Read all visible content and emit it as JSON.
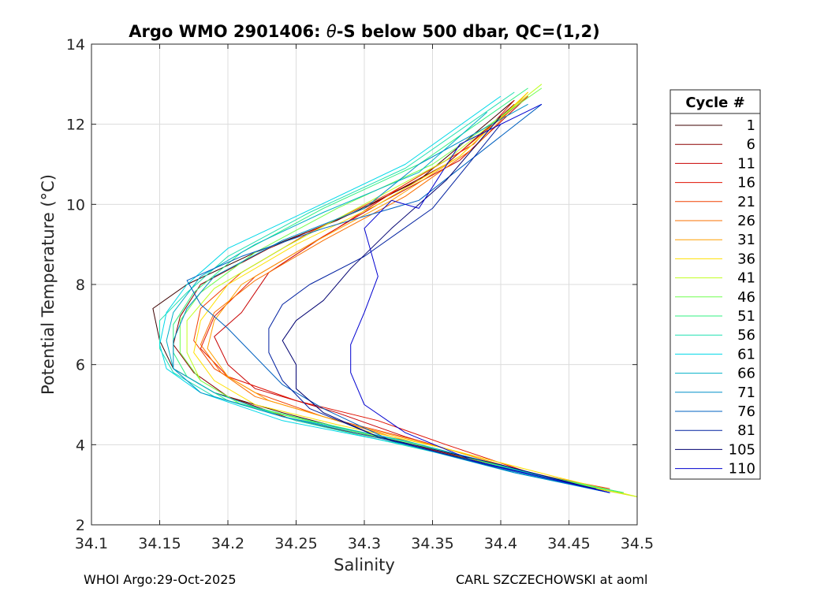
{
  "chart_data": {
    "type": "line",
    "title_prefix": "Argo WMO 2901406: ",
    "title_theta": "θ",
    "title_suffix": "-S below 500 dbar,  QC=(1,2)",
    "xlabel": "Salinity",
    "ylabel": "Potential Temperature (°C)",
    "xlim": [
      34.1,
      34.5
    ],
    "ylim": [
      2,
      14
    ],
    "x_ticks": [
      "34.1",
      "34.15",
      "34.2",
      "34.25",
      "34.3",
      "34.35",
      "34.4",
      "34.45",
      "34.5"
    ],
    "y_ticks": [
      "2",
      "4",
      "6",
      "8",
      "10",
      "12",
      "14"
    ],
    "grid": true,
    "legend": {
      "title": "Cycle #",
      "position": "right",
      "entries": [
        {
          "label": "1",
          "color": "#3d0000"
        },
        {
          "label": "6",
          "color": "#8c0000"
        },
        {
          "label": "11",
          "color": "#c80000"
        },
        {
          "label": "16",
          "color": "#e01000"
        },
        {
          "label": "21",
          "color": "#f04000"
        },
        {
          "label": "26",
          "color": "#fa7000"
        },
        {
          "label": "31",
          "color": "#ffa000"
        },
        {
          "label": "36",
          "color": "#ffe000"
        },
        {
          "label": "41",
          "color": "#c0ff20"
        },
        {
          "label": "46",
          "color": "#70ff50"
        },
        {
          "label": "51",
          "color": "#30f080"
        },
        {
          "label": "56",
          "color": "#20e0b0"
        },
        {
          "label": "61",
          "color": "#00d8e8"
        },
        {
          "label": "66",
          "color": "#00b0c8"
        },
        {
          "label": "71",
          "color": "#0090c8"
        },
        {
          "label": "76",
          "color": "#0060c0"
        },
        {
          "label": "81",
          "color": "#0020a0"
        },
        {
          "label": "105",
          "color": "#000070"
        },
        {
          "label": "110",
          "color": "#0000d0"
        }
      ]
    },
    "series": [
      {
        "name": "1",
        "color": "#3d0000",
        "points": [
          [
            34.48,
            2.8
          ],
          [
            34.42,
            3.3
          ],
          [
            34.33,
            4.0
          ],
          [
            34.24,
            4.8
          ],
          [
            34.19,
            5.3
          ],
          [
            34.16,
            5.9
          ],
          [
            34.15,
            6.6
          ],
          [
            34.145,
            7.4
          ],
          [
            34.17,
            8.0
          ],
          [
            34.22,
            8.8
          ],
          [
            34.28,
            9.6
          ],
          [
            34.34,
            10.6
          ],
          [
            34.41,
            12.6
          ]
        ]
      },
      {
        "name": "6",
        "color": "#8c0000",
        "points": [
          [
            34.47,
            2.9
          ],
          [
            34.41,
            3.4
          ],
          [
            34.32,
            4.1
          ],
          [
            34.25,
            4.6
          ],
          [
            34.2,
            5.2
          ],
          [
            34.175,
            5.8
          ],
          [
            34.16,
            6.5
          ],
          [
            34.165,
            7.2
          ],
          [
            34.18,
            8.0
          ],
          [
            34.23,
            8.9
          ],
          [
            34.3,
            9.9
          ],
          [
            34.36,
            11.0
          ],
          [
            34.41,
            12.5
          ]
        ]
      },
      {
        "name": "11",
        "color": "#c80000",
        "points": [
          [
            34.46,
            3.0
          ],
          [
            34.41,
            3.4
          ],
          [
            34.33,
            4.2
          ],
          [
            34.28,
            4.8
          ],
          [
            34.22,
            5.4
          ],
          [
            34.2,
            6.0
          ],
          [
            34.19,
            6.7
          ],
          [
            34.21,
            7.3
          ],
          [
            34.23,
            8.3
          ],
          [
            34.27,
            9.2
          ],
          [
            34.31,
            10.0
          ],
          [
            34.37,
            11.1
          ],
          [
            34.42,
            12.7
          ]
        ]
      },
      {
        "name": "16",
        "color": "#e01000",
        "points": [
          [
            34.49,
            2.8
          ],
          [
            34.43,
            3.2
          ],
          [
            34.36,
            4.0
          ],
          [
            34.31,
            4.6
          ],
          [
            34.25,
            5.1
          ],
          [
            34.2,
            5.7
          ],
          [
            34.18,
            6.4
          ],
          [
            34.19,
            7.2
          ],
          [
            34.22,
            8.2
          ],
          [
            34.28,
            9.4
          ],
          [
            34.33,
            10.5
          ],
          [
            34.38,
            11.5
          ],
          [
            34.41,
            12.6
          ]
        ]
      },
      {
        "name": "21",
        "color": "#f04000",
        "points": [
          [
            34.48,
            2.9
          ],
          [
            34.42,
            3.3
          ],
          [
            34.34,
            4.1
          ],
          [
            34.27,
            4.7
          ],
          [
            34.22,
            5.3
          ],
          [
            34.19,
            5.9
          ],
          [
            34.175,
            6.6
          ],
          [
            34.18,
            7.4
          ],
          [
            34.21,
            8.3
          ],
          [
            34.26,
            9.3
          ],
          [
            34.32,
            10.3
          ],
          [
            34.37,
            11.3
          ],
          [
            34.42,
            12.7
          ]
        ]
      },
      {
        "name": "26",
        "color": "#fa7000",
        "points": [
          [
            34.49,
            2.8
          ],
          [
            34.43,
            3.2
          ],
          [
            34.35,
            3.9
          ],
          [
            34.28,
            4.6
          ],
          [
            34.22,
            5.2
          ],
          [
            34.195,
            5.8
          ],
          [
            34.18,
            6.5
          ],
          [
            34.19,
            7.3
          ],
          [
            34.22,
            8.1
          ],
          [
            34.27,
            9.1
          ],
          [
            34.33,
            10.2
          ],
          [
            34.38,
            11.4
          ],
          [
            34.42,
            12.8
          ]
        ]
      },
      {
        "name": "31",
        "color": "#ffa000",
        "points": [
          [
            34.5,
            2.7
          ],
          [
            34.44,
            3.1
          ],
          [
            34.36,
            3.9
          ],
          [
            34.29,
            4.5
          ],
          [
            34.23,
            5.1
          ],
          [
            34.2,
            5.7
          ],
          [
            34.185,
            6.4
          ],
          [
            34.19,
            7.1
          ],
          [
            34.21,
            8.0
          ],
          [
            34.26,
            9.0
          ],
          [
            34.32,
            10.1
          ],
          [
            34.37,
            11.2
          ],
          [
            34.42,
            12.8
          ]
        ]
      },
      {
        "name": "36",
        "color": "#ffe000",
        "points": [
          [
            34.5,
            2.7
          ],
          [
            34.44,
            3.2
          ],
          [
            34.36,
            3.9
          ],
          [
            34.28,
            4.5
          ],
          [
            34.22,
            5.0
          ],
          [
            34.19,
            5.6
          ],
          [
            34.175,
            6.3
          ],
          [
            34.18,
            7.1
          ],
          [
            34.2,
            8.0
          ],
          [
            34.25,
            9.0
          ],
          [
            34.31,
            10.0
          ],
          [
            34.37,
            11.2
          ],
          [
            34.42,
            12.8
          ]
        ]
      },
      {
        "name": "41",
        "color": "#c0ff20",
        "points": [
          [
            34.5,
            2.7
          ],
          [
            34.43,
            3.2
          ],
          [
            34.35,
            3.9
          ],
          [
            34.27,
            4.5
          ],
          [
            34.21,
            5.0
          ],
          [
            34.18,
            5.6
          ],
          [
            34.17,
            6.3
          ],
          [
            34.17,
            7.1
          ],
          [
            34.19,
            7.9
          ],
          [
            34.24,
            8.9
          ],
          [
            34.3,
            10.0
          ],
          [
            34.36,
            11.1
          ],
          [
            34.43,
            13.0
          ]
        ]
      },
      {
        "name": "46",
        "color": "#70ff50",
        "points": [
          [
            34.49,
            2.8
          ],
          [
            34.43,
            3.2
          ],
          [
            34.35,
            3.9
          ],
          [
            34.27,
            4.5
          ],
          [
            34.21,
            5.0
          ],
          [
            34.18,
            5.6
          ],
          [
            34.165,
            6.3
          ],
          [
            34.165,
            7.1
          ],
          [
            34.18,
            7.8
          ],
          [
            34.22,
            8.8
          ],
          [
            34.28,
            9.9
          ],
          [
            34.35,
            11.0
          ],
          [
            34.43,
            12.9
          ]
        ]
      },
      {
        "name": "51",
        "color": "#30f080",
        "points": [
          [
            34.49,
            2.8
          ],
          [
            34.42,
            3.3
          ],
          [
            34.34,
            4.0
          ],
          [
            34.26,
            4.6
          ],
          [
            34.2,
            5.1
          ],
          [
            34.17,
            5.7
          ],
          [
            34.16,
            6.3
          ],
          [
            34.16,
            7.0
          ],
          [
            34.175,
            7.8
          ],
          [
            34.21,
            8.8
          ],
          [
            34.27,
            9.9
          ],
          [
            34.34,
            11.0
          ],
          [
            34.42,
            12.9
          ]
        ]
      },
      {
        "name": "56",
        "color": "#20e0b0",
        "points": [
          [
            34.48,
            2.8
          ],
          [
            34.42,
            3.3
          ],
          [
            34.34,
            3.9
          ],
          [
            34.25,
            4.6
          ],
          [
            34.19,
            5.2
          ],
          [
            34.16,
            5.8
          ],
          [
            34.15,
            6.4
          ],
          [
            34.15,
            7.1
          ],
          [
            34.17,
            7.8
          ],
          [
            34.2,
            8.7
          ],
          [
            34.26,
            9.8
          ],
          [
            34.33,
            10.9
          ],
          [
            34.41,
            12.8
          ]
        ]
      },
      {
        "name": "61",
        "color": "#00d8e8",
        "points": [
          [
            34.48,
            2.8
          ],
          [
            34.41,
            3.3
          ],
          [
            34.33,
            4.0
          ],
          [
            34.24,
            4.6
          ],
          [
            34.18,
            5.3
          ],
          [
            34.155,
            5.9
          ],
          [
            34.15,
            6.5
          ],
          [
            34.155,
            7.3
          ],
          [
            34.17,
            8.0
          ],
          [
            34.2,
            8.9
          ],
          [
            34.25,
            9.7
          ],
          [
            34.33,
            11.0
          ],
          [
            34.4,
            12.7
          ]
        ]
      },
      {
        "name": "66",
        "color": "#00b0c8",
        "points": [
          [
            34.48,
            2.8
          ],
          [
            34.41,
            3.4
          ],
          [
            34.33,
            4.1
          ],
          [
            34.24,
            4.7
          ],
          [
            34.19,
            5.3
          ],
          [
            34.16,
            5.9
          ],
          [
            34.155,
            6.6
          ],
          [
            34.16,
            7.3
          ],
          [
            34.18,
            8.2
          ],
          [
            34.22,
            9.0
          ],
          [
            34.27,
            9.8
          ],
          [
            34.34,
            10.8
          ],
          [
            34.39,
            12.3
          ]
        ]
      },
      {
        "name": "71",
        "color": "#0090c8",
        "points": [
          [
            34.48,
            2.8
          ],
          [
            34.41,
            3.3
          ],
          [
            34.32,
            4.1
          ],
          [
            34.24,
            4.7
          ],
          [
            34.18,
            5.3
          ],
          [
            34.16,
            5.9
          ],
          [
            34.16,
            6.6
          ],
          [
            34.17,
            7.4
          ],
          [
            34.19,
            8.2
          ],
          [
            34.24,
            9.1
          ],
          [
            34.3,
            9.9
          ],
          [
            34.34,
            11.0
          ],
          [
            34.42,
            12.5
          ]
        ]
      },
      {
        "name": "76",
        "color": "#0060c0",
        "points": [
          [
            34.48,
            2.8
          ],
          [
            34.4,
            3.4
          ],
          [
            34.32,
            4.1
          ],
          [
            34.27,
            4.9
          ],
          [
            34.24,
            5.5
          ],
          [
            34.22,
            6.2
          ],
          [
            34.2,
            6.9
          ],
          [
            34.18,
            7.5
          ],
          [
            34.17,
            8.1
          ],
          [
            34.21,
            8.7
          ],
          [
            34.27,
            9.4
          ],
          [
            34.34,
            10.1
          ],
          [
            34.43,
            12.5
          ]
        ]
      },
      {
        "name": "81",
        "color": "#0020a0",
        "points": [
          [
            34.47,
            2.9
          ],
          [
            34.39,
            3.5
          ],
          [
            34.31,
            4.2
          ],
          [
            34.26,
            4.9
          ],
          [
            34.24,
            5.6
          ],
          [
            34.23,
            6.3
          ],
          [
            34.23,
            6.9
          ],
          [
            34.24,
            7.5
          ],
          [
            34.26,
            8.0
          ],
          [
            34.3,
            8.7
          ],
          [
            34.35,
            9.9
          ],
          [
            34.4,
            12.0
          ]
        ]
      },
      {
        "name": "105",
        "color": "#000070",
        "points": [
          [
            34.48,
            2.8
          ],
          [
            34.4,
            3.5
          ],
          [
            34.31,
            4.2
          ],
          [
            34.27,
            4.8
          ],
          [
            34.25,
            5.4
          ],
          [
            34.25,
            6.0
          ],
          [
            34.24,
            6.6
          ],
          [
            34.25,
            7.1
          ],
          [
            34.27,
            7.6
          ],
          [
            34.29,
            8.4
          ],
          [
            34.32,
            9.4
          ],
          [
            34.36,
            10.6
          ],
          [
            34.4,
            12.2
          ]
        ]
      },
      {
        "name": "110",
        "color": "#0000d0",
        "points": [
          [
            34.48,
            2.8
          ],
          [
            34.38,
            3.6
          ],
          [
            34.33,
            4.3
          ],
          [
            34.3,
            5.0
          ],
          [
            34.29,
            5.8
          ],
          [
            34.29,
            6.5
          ],
          [
            34.3,
            7.3
          ],
          [
            34.31,
            8.2
          ],
          [
            34.3,
            9.4
          ],
          [
            34.32,
            10.1
          ],
          [
            34.34,
            9.9
          ],
          [
            34.37,
            11.5
          ],
          [
            34.43,
            12.5
          ]
        ]
      }
    ]
  },
  "footer": {
    "left": "WHOI Argo:29-Oct-2025",
    "right": "CARL SZCZECHOWSKI at aoml"
  }
}
